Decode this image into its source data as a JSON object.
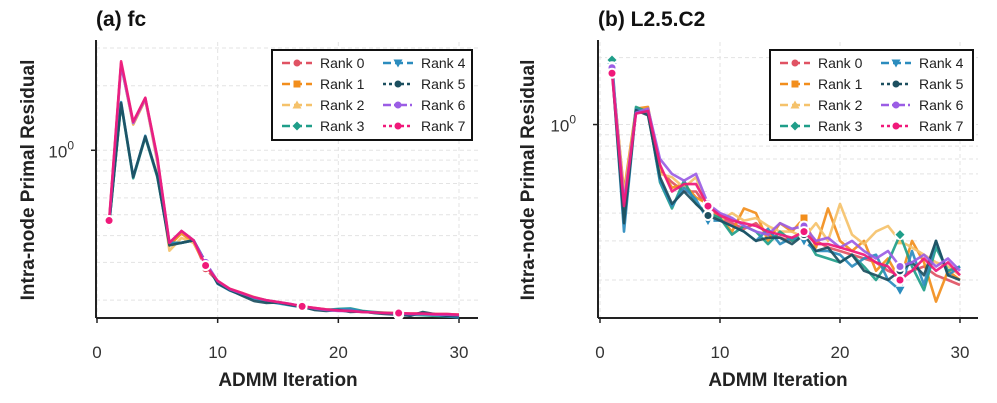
{
  "chart_data": [
    {
      "type": "line",
      "title": "(a) fc",
      "xlabel": "ADMM Iteration",
      "ylabel": "Intra-node Primal Residual",
      "yscale": "log",
      "xlim": [
        0,
        32
      ],
      "ylim": [
        0.165,
        3.2
      ],
      "xticks": [
        0,
        10,
        20,
        30
      ],
      "xtick_labels": [
        "0",
        "10",
        "20",
        "30"
      ],
      "yticks": [
        1.0
      ],
      "ytick_labels": [
        "10",
        "0"
      ],
      "grid": true,
      "legend": "top-right",
      "x": [
        1,
        2,
        3,
        4,
        5,
        6,
        7,
        8,
        9,
        10,
        11,
        12,
        13,
        14,
        15,
        16,
        17,
        18,
        19,
        20,
        21,
        22,
        23,
        24,
        25,
        26,
        27,
        28,
        29,
        30
      ],
      "series": [
        {
          "name": "Rank 0",
          "values": [
            0.45,
            2.55,
            1.35,
            1.75,
            0.92,
            0.36,
            0.42,
            0.38,
            0.28,
            0.245,
            0.225,
            0.215,
            0.205,
            0.2,
            0.195,
            0.19,
            0.187,
            0.184,
            0.181,
            0.179,
            0.177,
            0.176,
            0.175,
            0.174,
            0.174,
            0.173,
            0.173,
            0.172,
            0.172,
            0.171
          ]
        },
        {
          "name": "Rank 1",
          "values": [
            0.46,
            2.5,
            1.32,
            1.72,
            0.9,
            0.36,
            0.41,
            0.37,
            0.29,
            0.244,
            0.224,
            0.214,
            0.206,
            0.199,
            0.194,
            0.19,
            0.186,
            0.183,
            0.18,
            0.179,
            0.178,
            0.176,
            0.175,
            0.174,
            0.174,
            0.172,
            0.172,
            0.172,
            0.171,
            0.171
          ]
        },
        {
          "name": "Rank 2",
          "values": [
            0.46,
            2.52,
            1.33,
            1.73,
            0.88,
            0.34,
            0.39,
            0.37,
            0.3,
            0.243,
            0.226,
            0.216,
            0.207,
            0.2,
            0.196,
            0.191,
            0.186,
            0.183,
            0.181,
            0.18,
            0.178,
            0.177,
            0.176,
            0.175,
            0.174,
            0.173,
            0.173,
            0.172,
            0.172,
            0.171
          ]
        },
        {
          "name": "Rank 3",
          "values": [
            0.45,
            1.65,
            0.74,
            1.15,
            0.75,
            0.37,
            0.37,
            0.38,
            0.3,
            0.24,
            0.222,
            0.212,
            0.204,
            0.198,
            0.194,
            0.19,
            0.186,
            0.183,
            0.18,
            0.182,
            0.183,
            0.178,
            0.176,
            0.174,
            0.173,
            0.171,
            0.17,
            0.169,
            0.168,
            0.167
          ]
        },
        {
          "name": "Rank 4",
          "values": [
            0.45,
            1.68,
            0.75,
            1.17,
            0.76,
            0.37,
            0.37,
            0.38,
            0.3,
            0.238,
            0.222,
            0.211,
            0.203,
            0.197,
            0.193,
            0.189,
            0.185,
            0.182,
            0.18,
            0.181,
            0.182,
            0.177,
            0.175,
            0.173,
            0.172,
            0.17,
            0.174,
            0.171,
            0.168,
            0.166
          ]
        },
        {
          "name": "Rank 5",
          "values": [
            0.45,
            1.66,
            0.75,
            1.16,
            0.76,
            0.36,
            0.37,
            0.38,
            0.3,
            0.239,
            0.223,
            0.21,
            0.198,
            0.194,
            0.195,
            0.19,
            0.186,
            0.18,
            0.178,
            0.18,
            0.176,
            0.177,
            0.174,
            0.172,
            0.171,
            0.169,
            0.176,
            0.172,
            0.169,
            0.168
          ]
        },
        {
          "name": "Rank 6",
          "values": [
            0.46,
            2.5,
            1.34,
            1.74,
            0.91,
            0.37,
            0.42,
            0.38,
            0.3,
            0.245,
            0.225,
            0.215,
            0.206,
            0.2,
            0.196,
            0.192,
            0.187,
            0.183,
            0.18,
            0.178,
            0.178,
            0.176,
            0.175,
            0.174,
            0.173,
            0.172,
            0.172,
            0.171,
            0.171,
            0.17
          ]
        },
        {
          "name": "Rank 7",
          "values": [
            0.47,
            2.6,
            1.36,
            1.76,
            0.93,
            0.37,
            0.42,
            0.38,
            0.29,
            0.246,
            0.226,
            0.216,
            0.206,
            0.2,
            0.196,
            0.192,
            0.187,
            0.184,
            0.181,
            0.179,
            0.178,
            0.176,
            0.175,
            0.174,
            0.174,
            0.173,
            0.173,
            0.172,
            0.172,
            0.171
          ]
        }
      ]
    },
    {
      "type": "line",
      "title": "(b) L2.5.C2",
      "xlabel": "ADMM Iteration",
      "ylabel": "Intra-node Primal Residual",
      "yscale": "log",
      "xlim": [
        0,
        32
      ],
      "ylim": [
        0.135,
        2.35
      ],
      "xticks": [
        0,
        10,
        20,
        30
      ],
      "xtick_labels": [
        "0",
        "10",
        "20",
        "30"
      ],
      "yticks": [
        1.0
      ],
      "ytick_labels": [
        "10",
        "0"
      ],
      "grid": true,
      "legend": "top-right",
      "x": [
        1,
        2,
        3,
        4,
        5,
        6,
        7,
        8,
        9,
        10,
        11,
        12,
        13,
        14,
        15,
        16,
        17,
        18,
        19,
        20,
        21,
        22,
        23,
        24,
        25,
        26,
        27,
        28,
        29,
        30
      ],
      "series": [
        {
          "name": "Rank 0",
          "values": [
            1.8,
            0.48,
            1.15,
            1.12,
            0.62,
            0.55,
            0.5,
            0.5,
            0.42,
            0.38,
            0.36,
            0.34,
            0.36,
            0.32,
            0.31,
            0.3,
            0.33,
            0.3,
            0.28,
            0.27,
            0.26,
            0.25,
            0.24,
            0.22,
            0.21,
            0.22,
            0.23,
            0.21,
            0.2,
            0.19
          ]
        },
        {
          "name": "Rank 1",
          "values": [
            1.75,
            0.5,
            1.18,
            1.2,
            0.64,
            0.52,
            0.54,
            0.47,
            0.44,
            0.38,
            0.33,
            0.42,
            0.4,
            0.3,
            0.36,
            0.33,
            0.38,
            0.28,
            0.42,
            0.3,
            0.27,
            0.3,
            0.22,
            0.25,
            0.2,
            0.3,
            0.24,
            0.16,
            0.22,
            0.2
          ]
        },
        {
          "name": "Rank 2",
          "values": [
            1.78,
            0.48,
            1.14,
            1.16,
            0.6,
            0.58,
            0.52,
            0.58,
            0.41,
            0.37,
            0.4,
            0.37,
            0.38,
            0.35,
            0.33,
            0.33,
            0.31,
            0.36,
            0.3,
            0.44,
            0.32,
            0.29,
            0.33,
            0.35,
            0.3,
            0.28,
            0.26,
            0.24,
            0.23,
            0.21
          ]
        },
        {
          "name": "Rank 3",
          "values": [
            1.95,
            0.38,
            1.2,
            1.14,
            0.55,
            0.42,
            0.56,
            0.44,
            0.4,
            0.38,
            0.32,
            0.35,
            0.33,
            0.29,
            0.33,
            0.3,
            0.32,
            0.26,
            0.25,
            0.24,
            0.26,
            0.23,
            0.2,
            0.24,
            0.32,
            0.23,
            0.18,
            0.28,
            0.22,
            0.23
          ]
        },
        {
          "name": "Rank 4",
          "values": [
            1.82,
            0.33,
            1.17,
            1.13,
            0.56,
            0.43,
            0.52,
            0.46,
            0.37,
            0.37,
            0.35,
            0.33,
            0.3,
            0.34,
            0.29,
            0.31,
            0.3,
            0.27,
            0.27,
            0.26,
            0.23,
            0.25,
            0.26,
            0.2,
            0.18,
            0.27,
            0.19,
            0.3,
            0.21,
            0.23
          ]
        },
        {
          "name": "Rank 5",
          "values": [
            1.76,
            0.36,
            1.16,
            1.1,
            0.58,
            0.44,
            0.5,
            0.44,
            0.39,
            0.37,
            0.35,
            0.33,
            0.3,
            0.31,
            0.31,
            0.29,
            0.32,
            0.27,
            0.28,
            0.24,
            0.26,
            0.22,
            0.21,
            0.2,
            0.22,
            0.24,
            0.21,
            0.3,
            0.21,
            0.2
          ]
        },
        {
          "name": "Rank 6",
          "values": [
            1.8,
            0.45,
            1.13,
            1.18,
            0.7,
            0.6,
            0.56,
            0.6,
            0.44,
            0.4,
            0.38,
            0.35,
            0.33,
            0.32,
            0.36,
            0.34,
            0.35,
            0.3,
            0.31,
            0.28,
            0.3,
            0.27,
            0.25,
            0.27,
            0.23,
            0.24,
            0.26,
            0.23,
            0.25,
            0.22
          ]
        },
        {
          "name": "Rank 7",
          "values": [
            1.7,
            0.43,
            1.12,
            1.15,
            0.66,
            0.5,
            0.54,
            0.54,
            0.43,
            0.39,
            0.37,
            0.36,
            0.35,
            0.33,
            0.32,
            0.31,
            0.33,
            0.29,
            0.29,
            0.28,
            0.27,
            0.26,
            0.24,
            0.23,
            0.2,
            0.22,
            0.25,
            0.22,
            0.24,
            0.21
          ]
        }
      ]
    }
  ],
  "legend_entries": [
    {
      "label": "Rank 0",
      "color": "#e05263",
      "marker": "circle",
      "dash": "8 4"
    },
    {
      "label": "Rank 1",
      "color": "#f28e1c",
      "marker": "square",
      "dash": "8 4"
    },
    {
      "label": "Rank 2",
      "color": "#f5c26b",
      "marker": "triangle",
      "dash": "8 4"
    },
    {
      "label": "Rank 3",
      "color": "#1f9e89",
      "marker": "diamond",
      "dash": "8 4"
    },
    {
      "label": "Rank 4",
      "color": "#2b8cbe",
      "marker": "triangle-down",
      "dash": "8 4"
    },
    {
      "label": "Rank 5",
      "color": "#1c4f5f",
      "marker": "circle",
      "dash": "3 3"
    },
    {
      "label": "Rank 6",
      "color": "#9b5de5",
      "marker": "circle",
      "dash": "8 3 2 3"
    },
    {
      "label": "Rank 7",
      "color": "#f0197a",
      "marker": "circle",
      "dash": "3 3"
    }
  ]
}
